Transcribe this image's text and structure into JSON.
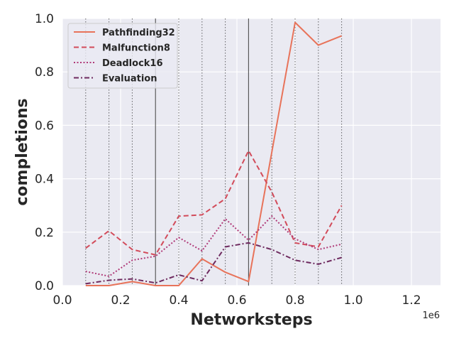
{
  "chart_data": {
    "type": "line",
    "xlabel": "Networksteps",
    "ylabel": "completions",
    "x_offset_label": "1e6",
    "xlim": [
      0.0,
      1.3
    ],
    "ylim": [
      0.0,
      1.0
    ],
    "xticks": [
      0.0,
      0.2,
      0.4,
      0.6,
      0.8,
      1.0,
      1.2
    ],
    "xtick_labels": [
      "0.0",
      "0.2",
      "0.4",
      "0.6",
      "0.8",
      "1.0",
      "1.2"
    ],
    "yticks": [
      0.0,
      0.2,
      0.4,
      0.6,
      0.8,
      1.0
    ],
    "ytick_labels": [
      "0.0",
      "0.2",
      "0.4",
      "0.6",
      "0.8",
      "1.0"
    ],
    "grid": true,
    "legend_position": "top-left",
    "x": [
      0.08,
      0.16,
      0.24,
      0.32,
      0.4,
      0.48,
      0.56,
      0.64,
      0.72,
      0.8,
      0.88,
      0.96
    ],
    "series": [
      {
        "name": "Pathfinding32",
        "color": "#e8735a",
        "dash": "solid",
        "values": [
          0.0,
          0.0,
          0.015,
          0.0,
          0.0,
          0.1,
          0.05,
          0.015,
          0.5,
          0.985,
          0.9,
          0.935
        ]
      },
      {
        "name": "Malfunction8",
        "color": "#d24b5a",
        "dash": "dashed",
        "values": [
          0.14,
          0.205,
          0.135,
          0.115,
          0.26,
          0.265,
          0.325,
          0.505,
          0.35,
          0.16,
          0.145,
          0.3
        ]
      },
      {
        "name": "Deadlock16",
        "color": "#b03a78",
        "dash": "dotted",
        "values": [
          0.053,
          0.035,
          0.095,
          0.11,
          0.18,
          0.13,
          0.25,
          0.17,
          0.26,
          0.175,
          0.135,
          0.155
        ]
      },
      {
        "name": "Evaluation",
        "color": "#6e2a5f",
        "dash": "dashdot",
        "values": [
          0.007,
          0.02,
          0.025,
          0.01,
          0.04,
          0.018,
          0.145,
          0.16,
          0.135,
          0.095,
          0.08,
          0.105
        ]
      }
    ],
    "vertical_lines": [
      {
        "x": 0.08,
        "style": "dotted"
      },
      {
        "x": 0.16,
        "style": "dotted"
      },
      {
        "x": 0.24,
        "style": "dotted"
      },
      {
        "x": 0.32,
        "style": "solid"
      },
      {
        "x": 0.4,
        "style": "dotted"
      },
      {
        "x": 0.48,
        "style": "dotted"
      },
      {
        "x": 0.56,
        "style": "dotted"
      },
      {
        "x": 0.64,
        "style": "solid"
      },
      {
        "x": 0.72,
        "style": "dotted"
      },
      {
        "x": 0.8,
        "style": "dotted"
      },
      {
        "x": 0.88,
        "style": "dotted"
      },
      {
        "x": 0.96,
        "style": "dotted"
      }
    ],
    "colors": {
      "background": "#eaeaf2",
      "grid": "#ffffff",
      "vline": "#333333"
    }
  }
}
